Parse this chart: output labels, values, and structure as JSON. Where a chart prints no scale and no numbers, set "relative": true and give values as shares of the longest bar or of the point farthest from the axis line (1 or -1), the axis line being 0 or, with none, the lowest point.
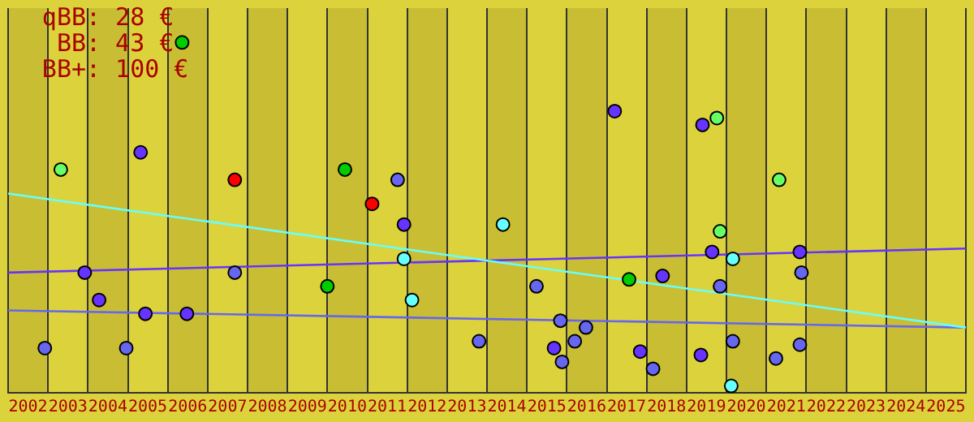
{
  "chart_data": {
    "type": "scatter",
    "relative": true,
    "grid": "x",
    "marker": "circle",
    "annotations": [
      "qBB: 28 €",
      "BB: 43 €",
      "BB+: 100 €"
    ],
    "bands": [
      {
        "axis": "x",
        "from": 2001.5,
        "to": 2002.5,
        "color": "#c9be33"
      },
      {
        "axis": "x",
        "from": 2003.5,
        "to": 2004.5,
        "color": "#c9be33"
      },
      {
        "axis": "x",
        "from": 2005.5,
        "to": 2006.5,
        "color": "#c9be33"
      },
      {
        "axis": "x",
        "from": 2007.5,
        "to": 2008.5,
        "color": "#c9be33"
      },
      {
        "axis": "x",
        "from": 2009.5,
        "to": 2010.5,
        "color": "#c9be33"
      },
      {
        "axis": "x",
        "from": 2011.5,
        "to": 2012.5,
        "color": "#c9be33"
      },
      {
        "axis": "x",
        "from": 2013.5,
        "to": 2014.5,
        "color": "#c9be33"
      },
      {
        "axis": "x",
        "from": 2015.5,
        "to": 2016.5,
        "color": "#c9be33"
      },
      {
        "axis": "x",
        "from": 2017.5,
        "to": 2018.5,
        "color": "#c9be33"
      },
      {
        "axis": "x",
        "from": 2019.5,
        "to": 2020.5,
        "color": "#c9be33"
      },
      {
        "axis": "x",
        "from": 2021.5,
        "to": 2022.5,
        "color": "#c9be33"
      },
      {
        "axis": "x",
        "from": 2023.5,
        "to": 2024.5,
        "color": "#c9be33"
      }
    ],
    "xlim": [
      2001.5,
      2025.5
    ],
    "xticks": [
      2002,
      2003,
      2004,
      2005,
      2006,
      2007,
      2008,
      2009,
      2010,
      2011,
      2012,
      2013,
      2014,
      2015,
      2016,
      2017,
      2018,
      2019,
      2020,
      2021,
      2022,
      2023,
      2024,
      2025
    ],
    "series": [
      {
        "type": "line",
        "marker": "none",
        "color": "#66ffff",
        "x": [
          2001.5,
          2025.5
        ],
        "values": [
          0.56,
          0.17
        ]
      },
      {
        "type": "line",
        "marker": "none",
        "color": "#6633ff",
        "x": [
          2001.5,
          2025.5
        ],
        "values": [
          0.33,
          0.4
        ]
      },
      {
        "type": "line",
        "marker": "none",
        "color": "#6666ee",
        "x": [
          2001.5,
          2025.5
        ],
        "values": [
          0.22,
          0.17
        ]
      },
      {
        "color": "#6633ff",
        "x": [
          2004.82,
          2011.42,
          2003.42,
          2003.78,
          2004.94,
          2005.98,
          2016.7,
          2018.9,
          2019.14,
          2021.34,
          2017.9,
          2015.18,
          2017.34,
          2018.86
        ],
        "values": [
          0.68,
          0.47,
          0.33,
          0.25,
          0.21,
          0.21,
          0.8,
          0.76,
          0.39,
          0.39,
          0.32,
          0.11,
          0.1,
          0.09
        ]
      },
      {
        "color": "#6666ee",
        "x": [
          2011.26,
          2007.18,
          2002.42,
          2004.46,
          2013.3,
          2021.38,
          2014.74,
          2019.34,
          2015.34,
          2015.98,
          2015.7,
          2015.38,
          2017.66,
          2019.66,
          2020.74,
          2021.34
        ],
        "values": [
          0.6,
          0.33,
          0.11,
          0.11,
          0.13,
          0.33,
          0.29,
          0.29,
          0.19,
          0.17,
          0.13,
          0.07,
          0.05,
          0.13,
          0.08,
          0.12
        ]
      },
      {
        "color": "#66ffff",
        "x": [
          2011.42,
          2011.62,
          2013.9,
          2019.66,
          2019.62
        ],
        "values": [
          0.37,
          0.25,
          0.47,
          0.37,
          0
        ]
      },
      {
        "color": "#66ff66",
        "x": [
          2002.82,
          2019.26,
          2020.82,
          2019.34
        ],
        "values": [
          0.63,
          0.78,
          0.6,
          0.45
        ]
      },
      {
        "color": "#00cc00",
        "x": [
          2005.86,
          2009.94,
          2009.5,
          2017.06
        ],
        "values": [
          1,
          0.63,
          0.29,
          0.31
        ]
      },
      {
        "color": "#ff0000",
        "x": [
          2007.18,
          2010.62
        ],
        "values": [
          0.6,
          0.53
        ]
      }
    ]
  }
}
